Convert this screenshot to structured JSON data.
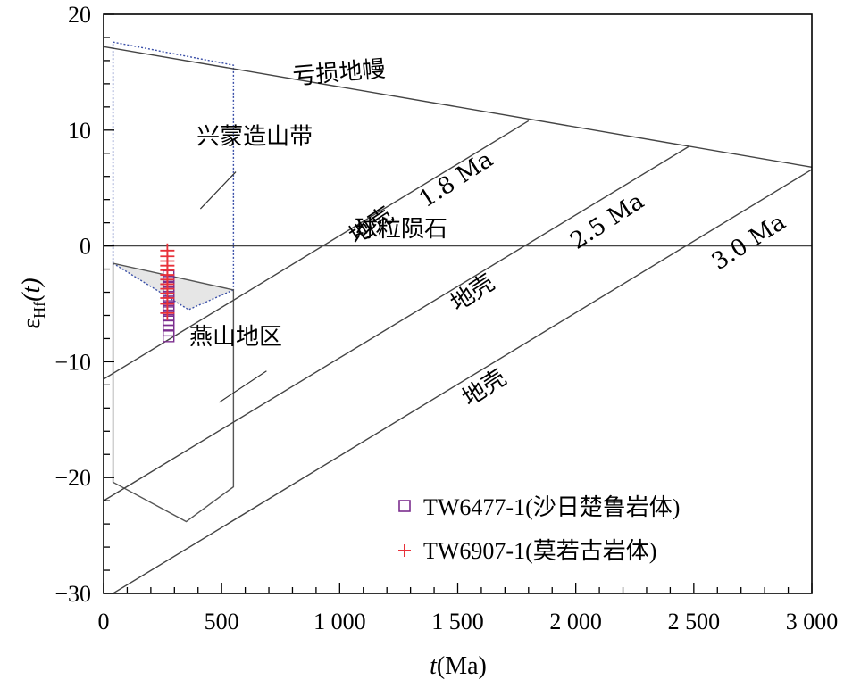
{
  "chart_data": {
    "type": "scatter",
    "title": "",
    "xlabel_italic": "t",
    "xlabel_rest": "(Ma)",
    "ylabel_main": "ε",
    "ylabel_sub": "Hf",
    "ylabel_rest": "(t)",
    "xlim": [
      0,
      3000
    ],
    "ylim": [
      -30,
      20
    ],
    "x_ticks": [
      0,
      500,
      1000,
      1500,
      2000,
      2500,
      3000
    ],
    "x_tick_labels": [
      "0",
      "500",
      "1 000",
      "1 500",
      "2 000",
      "2 500",
      "3 000"
    ],
    "y_ticks": [
      20,
      10,
      0,
      -10,
      -20,
      -30
    ],
    "y_tick_labels": [
      "20",
      "10",
      "0",
      "−10",
      "−20",
      "−30"
    ],
    "grid": false,
    "reference_lines": [
      {
        "name": "亏损地幔",
        "x": [
          0,
          3000
        ],
        "y": [
          17.2,
          6.8
        ]
      },
      {
        "name": "球粒陨石",
        "x": [
          0,
          3000
        ],
        "y": [
          0,
          0
        ]
      },
      {
        "name": "1.8 Ma",
        "x": [
          0,
          1800
        ],
        "y": [
          -11.5,
          10.8
        ]
      },
      {
        "name": "2.5 Ma",
        "x": [
          0,
          2480
        ],
        "y": [
          -22,
          8.6
        ]
      },
      {
        "name": "3.0 Ma",
        "x": [
          40,
          3000
        ],
        "y": [
          -30,
          6.6
        ]
      }
    ],
    "regions": [
      {
        "name": "兴蒙造山带",
        "style": "dotted",
        "x": [
          40,
          40,
          550,
          550,
          360,
          40
        ],
        "y": [
          17.6,
          -1.5,
          -3.8,
          15.6,
          -5.5,
          -1.5
        ]
      },
      {
        "name": "燕山地区",
        "style": "solid",
        "x": [
          40,
          550,
          550,
          350,
          40,
          40
        ],
        "y": [
          -1.5,
          -3.8,
          -20.8,
          -23.8,
          -20.4,
          -1.5
        ]
      }
    ],
    "annotations": [
      {
        "text": "亏损地幔",
        "x": 1000,
        "y": 14.3,
        "rotate": -5
      },
      {
        "text": "兴蒙造山带",
        "x": 640,
        "y": 8.8,
        "rotate": 0
      },
      {
        "text": "燕山地区",
        "x": 560,
        "y": -8.5,
        "rotate": 0
      },
      {
        "text": "球粒陨石",
        "x": 1260,
        "y": 0.8,
        "rotate": 0
      },
      {
        "text": "地壳",
        "x": 1150,
        "y": 1.2,
        "rotate": -33
      },
      {
        "text": "1.8 Ma",
        "x": 1510,
        "y": 5.2,
        "rotate": -33
      },
      {
        "text": "地壳",
        "x": 1580,
        "y": -4.6,
        "rotate": -33
      },
      {
        "text": "2.5 Ma",
        "x": 2150,
        "y": 1.6,
        "rotate": -33
      },
      {
        "text": "地壳",
        "x": 1630,
        "y": -12.8,
        "rotate": -33
      },
      {
        "text": "3.0 Ma",
        "x": 2750,
        "y": -0.2,
        "rotate": -33
      }
    ],
    "series": [
      {
        "name": "TW6477-1(沙日楚鲁岩体)",
        "marker": "square",
        "color": "#7b2d8e",
        "x": [
          275,
          275,
          275,
          275,
          275,
          275,
          275,
          275,
          275,
          275,
          275,
          275,
          275
        ],
        "y": [
          -2.6,
          -3.1,
          -3.6,
          -4.0,
          -4.4,
          -4.8,
          -5.2,
          -5.6,
          -6.0,
          -6.4,
          -6.8,
          -7.3,
          -7.8
        ]
      },
      {
        "name": "TW6907-1(莫若古岩体)",
        "marker": "plus",
        "color": "#e8313a",
        "x": [
          270,
          270,
          270,
          270,
          270,
          270,
          270,
          270,
          270,
          270,
          270,
          270,
          270
        ],
        "y": [
          -0.4,
          -0.9,
          -1.3,
          -1.7,
          -2.1,
          -2.5,
          -2.9,
          -3.3,
          -3.7,
          -4.1,
          -4.5,
          -5.0,
          -5.8
        ]
      }
    ],
    "legend_position": "bottom-right"
  }
}
